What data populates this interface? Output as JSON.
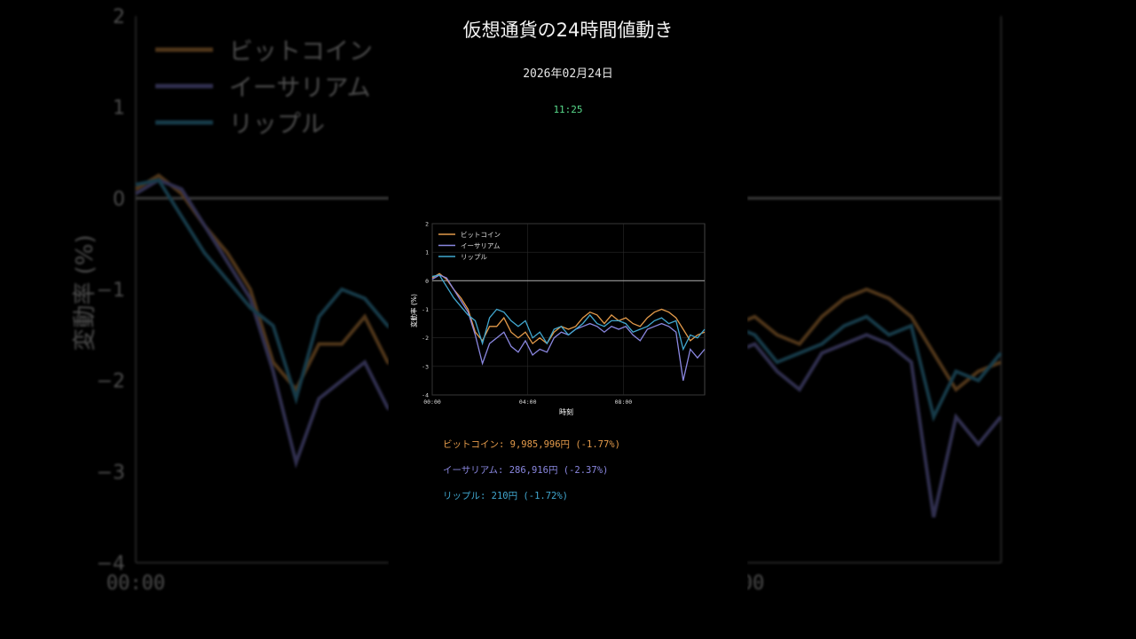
{
  "header": {
    "title": "仮想通貨の24時間値動き",
    "date": "2026年02月24日",
    "time": "11:25"
  },
  "prices": [
    {
      "name": "ビットコイン",
      "text": "ビットコイン: 9,985,996円 (-1.77%)",
      "color": "#e39a4a"
    },
    {
      "name": "イーサリアム",
      "text": "イーサリアム: 286,916円 (-2.37%)",
      "color": "#8a87e0"
    },
    {
      "name": "リップル",
      "text": "リップル: 210円 (-1.72%)",
      "color": "#41a7cf"
    }
  ],
  "background_axis": {
    "y_ticks": [
      "2",
      "1",
      "0",
      "−1",
      "−2",
      "−3",
      "−4"
    ],
    "x_tick": "00:00",
    "ylabel": "変動率 (%)",
    "x_tick_right": "00"
  },
  "chart_data": {
    "type": "line",
    "title": "",
    "xlabel": "時刻",
    "ylabel": "変動率 (%)",
    "ylim": [
      -4,
      2
    ],
    "xlim": [
      0,
      11.4
    ],
    "x_tick_labels": [
      "00:00",
      "04:00",
      "08:00"
    ],
    "x_tick_values": [
      0,
      4,
      8
    ],
    "y_tick_labels": [
      "2",
      "1",
      "0",
      "-1",
      "-2",
      "-3",
      "-4"
    ],
    "y_tick_values": [
      2,
      1,
      0,
      -1,
      -2,
      -3,
      -4
    ],
    "grid": true,
    "legend_placement": "top-left",
    "zero_line": true,
    "x": [
      0,
      0.3,
      0.6,
      0.9,
      1.2,
      1.5,
      1.8,
      2.1,
      2.4,
      2.7,
      3.0,
      3.3,
      3.6,
      3.9,
      4.2,
      4.5,
      4.8,
      5.1,
      5.4,
      5.7,
      6.0,
      6.3,
      6.6,
      6.9,
      7.2,
      7.5,
      7.8,
      8.1,
      8.4,
      8.7,
      9.0,
      9.3,
      9.6,
      9.9,
      10.2,
      10.5,
      10.8,
      11.1,
      11.4
    ],
    "series": [
      {
        "name": "ビットコイン",
        "color": "#e39a4a",
        "values": [
          0.1,
          0.25,
          0.05,
          -0.3,
          -0.6,
          -1.0,
          -1.8,
          -2.1,
          -1.6,
          -1.6,
          -1.3,
          -1.8,
          -2.0,
          -1.8,
          -2.2,
          -2.0,
          -2.2,
          -1.8,
          -1.6,
          -1.7,
          -1.6,
          -1.3,
          -1.1,
          -1.2,
          -1.5,
          -1.2,
          -1.4,
          -1.3,
          -1.5,
          -1.6,
          -1.3,
          -1.1,
          -1.0,
          -1.1,
          -1.3,
          -1.7,
          -2.1,
          -1.9,
          -1.8
        ]
      },
      {
        "name": "イーサリアム",
        "color": "#8a87e0",
        "values": [
          0.05,
          0.2,
          0.1,
          -0.3,
          -0.7,
          -1.1,
          -1.9,
          -2.9,
          -2.2,
          -2.0,
          -1.8,
          -2.3,
          -2.5,
          -2.1,
          -2.6,
          -2.4,
          -2.5,
          -2.0,
          -1.8,
          -1.9,
          -1.7,
          -1.6,
          -1.5,
          -1.6,
          -1.8,
          -1.6,
          -1.7,
          -1.6,
          -1.9,
          -2.1,
          -1.7,
          -1.6,
          -1.5,
          -1.6,
          -1.8,
          -3.5,
          -2.4,
          -2.7,
          -2.4
        ]
      },
      {
        "name": "リップル",
        "color": "#41a7cf",
        "values": [
          0.15,
          0.2,
          -0.2,
          -0.6,
          -0.9,
          -1.2,
          -1.4,
          -2.2,
          -1.3,
          -1.0,
          -1.1,
          -1.4,
          -1.6,
          -1.4,
          -2.0,
          -1.8,
          -2.2,
          -1.7,
          -1.6,
          -1.9,
          -1.7,
          -1.5,
          -1.2,
          -1.5,
          -1.6,
          -1.4,
          -1.4,
          -1.5,
          -1.8,
          -1.7,
          -1.6,
          -1.4,
          -1.3,
          -1.5,
          -1.4,
          -2.4,
          -1.9,
          -2.0,
          -1.7
        ]
      }
    ]
  }
}
